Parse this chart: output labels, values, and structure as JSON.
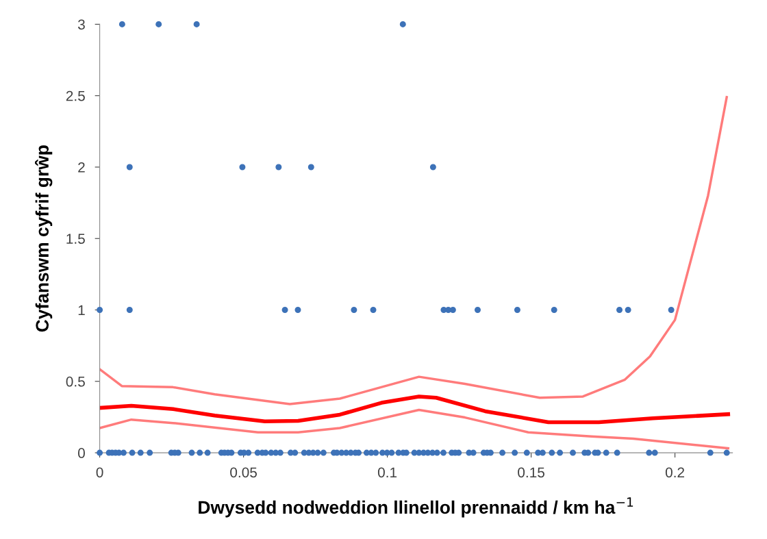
{
  "chart_data": {
    "type": "scatter",
    "xlabel": "Dwysedd nodweddion llinellol prennaidd / km ha$^{−1}$",
    "ylabel": "Cyfanswm cyfrif grŵp",
    "xlim": [
      0,
      0.22
    ],
    "ylim": [
      0,
      3
    ],
    "xticks": [
      0,
      0.05,
      0.1,
      0.15,
      0.2
    ],
    "yticks": [
      0,
      0.5,
      1,
      1.5,
      2,
      2.5,
      3
    ],
    "series": [
      {
        "color": "#3d72b8",
        "marker": "circle",
        "x": [
          0.0078,
          0.0205,
          0.0337,
          0.1054,
          0.0104,
          0.0496,
          0.0622,
          0.0735,
          0.1159,
          0,
          0.0104,
          0.0644,
          0.0689,
          0.0884,
          0.0951,
          0.1196,
          0.1212,
          0.1228,
          0.1314,
          0.1452,
          0.158,
          0.1807,
          0.1837,
          0.1987,
          0,
          0.0032,
          0.0043,
          0.0055,
          0.0067,
          0.0083,
          0.0113,
          0.0142,
          0.0174,
          0.0249,
          0.0261,
          0.0273,
          0.032,
          0.0348,
          0.0375,
          0.0423,
          0.0434,
          0.0446,
          0.0458,
          0.049,
          0.0502,
          0.0517,
          0.0549,
          0.0565,
          0.0577,
          0.0596,
          0.0612,
          0.0628,
          0.0664,
          0.0679,
          0.0711,
          0.0727,
          0.0742,
          0.0758,
          0.0778,
          0.0814,
          0.0825,
          0.0841,
          0.0857,
          0.0873,
          0.0889,
          0.09,
          0.0928,
          0.0944,
          0.096,
          0.0983,
          0.0999,
          0.1015,
          0.1039,
          0.1055,
          0.1066,
          0.1094,
          0.111,
          0.1126,
          0.1141,
          0.1157,
          0.1173,
          0.1195,
          0.1224,
          0.1236,
          0.1248,
          0.1284,
          0.1299,
          0.1335,
          0.1347,
          0.1359,
          0.14,
          0.1443,
          0.1485,
          0.1524,
          0.154,
          0.1572,
          0.16,
          0.1645,
          0.1686,
          0.1698,
          0.1722,
          0.1732,
          0.1761,
          0.1799,
          0.191,
          0.193,
          0.2123,
          0.218
        ],
        "values": [
          3,
          3,
          3,
          3,
          2,
          2,
          2,
          2,
          2,
          1,
          1,
          1,
          1,
          1,
          1,
          1,
          1,
          1,
          1,
          1,
          1,
          1,
          1,
          1,
          0,
          0,
          0,
          0,
          0,
          0,
          0,
          0,
          0,
          0,
          0,
          0,
          0,
          0,
          0,
          0,
          0,
          0,
          0,
          0,
          0,
          0,
          0,
          0,
          0,
          0,
          0,
          0,
          0,
          0,
          0,
          0,
          0,
          0,
          0,
          0,
          0,
          0,
          0,
          0,
          0,
          0,
          0,
          0,
          0,
          0,
          0,
          0,
          0,
          0,
          0,
          0,
          0,
          0,
          0,
          0,
          0,
          0,
          0,
          0,
          0,
          0,
          0,
          0,
          0,
          0,
          0,
          0,
          0,
          0,
          0,
          0,
          0,
          0,
          0,
          0,
          0,
          0,
          0,
          0,
          0,
          0,
          0,
          0
        ]
      },
      {
        "type": "line",
        "color": "#ff7b7b",
        "marker": "none",
        "line_style": "solid",
        "x": [
          0,
          0.0077,
          0.0255,
          0.04,
          0.0661,
          0.0835,
          0.111,
          0.127,
          0.153,
          0.168,
          0.1826,
          0.1913,
          0.2,
          0.2115,
          0.218
        ],
        "values": [
          0.585,
          0.467,
          0.459,
          0.409,
          0.341,
          0.379,
          0.532,
          0.482,
          0.385,
          0.394,
          0.512,
          0.674,
          0.93,
          1.8,
          2.49
        ]
      },
      {
        "type": "line",
        "color": "#ff0000",
        "marker": "none",
        "line_style": "solid",
        "x": [
          0,
          0.011,
          0.0255,
          0.04,
          0.0574,
          0.069,
          0.0835,
          0.098,
          0.111,
          0.117,
          0.134,
          0.156,
          0.1735,
          0.1923,
          0.2185
        ],
        "values": [
          0.314,
          0.329,
          0.306,
          0.261,
          0.22,
          0.223,
          0.267,
          0.35,
          0.394,
          0.385,
          0.291,
          0.214,
          0.214,
          0.241,
          0.27
        ]
      },
      {
        "type": "line",
        "color": "#ff7b7b",
        "marker": "none",
        "line_style": "solid",
        "x": [
          0,
          0.011,
          0.0255,
          0.055,
          0.069,
          0.0835,
          0.111,
          0.127,
          0.149,
          0.171,
          0.1855,
          0.2185
        ],
        "values": [
          0.173,
          0.232,
          0.208,
          0.143,
          0.143,
          0.173,
          0.3,
          0.247,
          0.143,
          0.114,
          0.099,
          0.031
        ]
      }
    ]
  }
}
